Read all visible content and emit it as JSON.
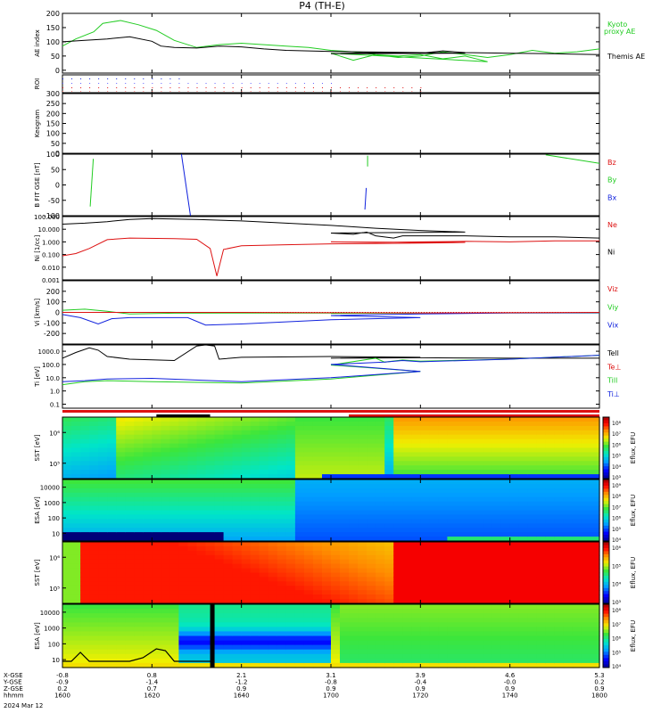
{
  "title": "P4 (TH-E)",
  "colors": {
    "black": "#000000",
    "green": "#22cc22",
    "red": "#dd1111",
    "blue": "#1122dd"
  },
  "chart_data": [
    {
      "id": "ae",
      "type": "line",
      "ylabel": "AE index",
      "ylim": [
        -10,
        200
      ],
      "yticks": [
        "200",
        "150",
        "100",
        "50",
        "0"
      ],
      "ytick_values": [
        200,
        150,
        100,
        50,
        0
      ],
      "legend": [
        {
          "text": "Kyoto",
          "color": "green"
        },
        {
          "text": "proxy AE",
          "color": "green"
        },
        {
          "text": "Themis AE",
          "color": "black"
        }
      ],
      "series": [
        {
          "name": "Kyoto proxy AE",
          "color": "green",
          "x": [
            1600,
            1603,
            1607,
            1609,
            1613,
            1617,
            1621,
            1625,
            1630,
            1635,
            1640,
            1645,
            1650,
            1655,
            1660,
            1665,
            1670,
            1675,
            1680,
            1685,
            1690,
            1695,
            1700,
            1705,
            1710,
            1715,
            1720,
            1725,
            1730,
            1735,
            1740,
            1745,
            1750,
            1755,
            1760
          ],
          "y": [
            85,
            110,
            135,
            165,
            175,
            160,
            140,
            105,
            80,
            90,
            95,
            90,
            85,
            80,
            70,
            65,
            55,
            50,
            55,
            40,
            50,
            30,
            60,
            35,
            55,
            45,
            50,
            65,
            55,
            45,
            55,
            70,
            60,
            65,
            75
          ]
        },
        {
          "name": "Themis AE",
          "color": "black",
          "x": [
            1600,
            1605,
            1610,
            1615,
            1620,
            1622,
            1625,
            1630,
            1635,
            1640,
            1645,
            1650,
            1660,
            1670,
            1680,
            1690,
            1700,
            1710,
            1720,
            1725,
            1730,
            1740,
            1750,
            1760
          ],
          "y": [
            100,
            105,
            110,
            118,
            102,
            85,
            80,
            78,
            85,
            82,
            75,
            70,
            66,
            64,
            62,
            60,
            58,
            62,
            60,
            68,
            62,
            60,
            58,
            55
          ]
        }
      ]
    },
    {
      "id": "roi",
      "type": "scatter",
      "ylabel": "ROI",
      "ylim": [
        0,
        4
      ]
    },
    {
      "id": "keogram",
      "type": "heatmap",
      "ylabel": "Keogram",
      "ylim": [
        0,
        300
      ],
      "yticks": [
        "300",
        "250",
        "200",
        "150",
        "100",
        "50",
        "0"
      ],
      "ytick_values": [
        300,
        250,
        200,
        150,
        100,
        50,
        0
      ]
    },
    {
      "id": "bfit",
      "type": "line",
      "ylabel": "B FIT GSE [nT]",
      "ylim": [
        -100,
        100
      ],
      "yticks": [
        "100",
        "50",
        "0",
        "-50",
        "-100"
      ],
      "ytick_values": [
        100,
        50,
        0,
        -50,
        -100
      ],
      "legend": [
        {
          "text": "Bz",
          "color": "red"
        },
        {
          "text": "By",
          "color": "green"
        },
        {
          "text": "Bx",
          "color": "blue"
        }
      ],
      "series": [
        {
          "name": "By",
          "color": "green",
          "x": [
            1606.2,
            1606.9
          ],
          "y": [
            -70,
            85
          ]
        },
        {
          "name": "Bx",
          "color": "blue",
          "x": [
            1626.6,
            1628.6
          ],
          "y": [
            100,
            -100
          ]
        },
        {
          "name": "By",
          "color": "green",
          "x": [
            1708.2,
            1708.2
          ],
          "y": [
            60,
            95
          ]
        },
        {
          "name": "Bx",
          "color": "blue",
          "x": [
            1707.6,
            1707.9
          ],
          "y": [
            -80,
            -10
          ]
        },
        {
          "name": "By",
          "color": "green",
          "x": [
            1748,
            1760
          ],
          "y": [
            98,
            70
          ]
        }
      ]
    },
    {
      "id": "density",
      "type": "line",
      "ylabel": "Ni [1/cc]",
      "scale": "log",
      "ylim": [
        0.001,
        100
      ],
      "yticks": [
        "100.000",
        "10.000",
        "1.000",
        "0.100",
        "0.010",
        "0.001"
      ],
      "ytick_values": [
        100,
        10,
        1,
        0.1,
        0.01,
        0.001
      ],
      "legend": [
        {
          "text": "Ne",
          "color": "red"
        },
        {
          "text": "Ni",
          "color": "black"
        }
      ],
      "series": [
        {
          "name": "Ni",
          "color": "black",
          "x": [
            1600,
            1605,
            1610,
            1615,
            1620,
            1630,
            1640,
            1650,
            1660,
            1670,
            1680,
            1690,
            1700,
            1705,
            1708,
            1710,
            1714,
            1716,
            1720,
            1730,
            1740,
            1750,
            1760
          ],
          "y": [
            25,
            30,
            40,
            60,
            70,
            60,
            45,
            30,
            20,
            12,
            8,
            6,
            5,
            4,
            6,
            3,
            2,
            3,
            3,
            3,
            2.5,
            2.5,
            2
          ]
        },
        {
          "name": "Ne",
          "color": "red",
          "x": [
            1600,
            1603,
            1606,
            1610,
            1615,
            1625,
            1630,
            1633,
            1634.5,
            1636,
            1640,
            1650,
            1660,
            1670,
            1680,
            1690,
            1700,
            1710,
            1720,
            1730,
            1740,
            1750,
            1760
          ],
          "y": [
            0.08,
            0.12,
            0.3,
            1.5,
            2,
            1.8,
            1.6,
            0.3,
            0.002,
            0.25,
            0.5,
            0.6,
            0.7,
            0.75,
            0.8,
            0.9,
            1,
            0.9,
            1,
            1.1,
            1,
            1.2,
            1.2
          ]
        }
      ]
    },
    {
      "id": "velocity",
      "type": "line",
      "ylabel": "Vi [km/s]",
      "ylim": [
        -300,
        300
      ],
      "yticks": [
        "200",
        "100",
        "0",
        "-100",
        "-200"
      ],
      "ytick_values": [
        200,
        100,
        0,
        -100,
        -200
      ],
      "legend": [
        {
          "text": "Viz",
          "color": "red"
        },
        {
          "text": "Viy",
          "color": "green"
        },
        {
          "text": "Vix",
          "color": "blue"
        }
      ],
      "series": [
        {
          "name": "Viy",
          "color": "green",
          "x": [
            1600,
            1605,
            1610,
            1615,
            1625,
            1640,
            1660,
            1680,
            1700,
            1720,
            1740,
            1760
          ],
          "y": [
            20,
            30,
            10,
            -15,
            -8,
            -6,
            -5,
            -6,
            -10,
            -6,
            -5,
            -5
          ]
        },
        {
          "name": "Vix",
          "color": "blue",
          "x": [
            1600,
            1604,
            1608,
            1611,
            1615,
            1628,
            1632,
            1640,
            1650,
            1660,
            1680,
            1700,
            1720,
            1740,
            1760
          ],
          "y": [
            -20,
            -50,
            -110,
            -60,
            -50,
            -50,
            -120,
            -110,
            -90,
            -70,
            -50,
            -30,
            -15,
            -5,
            -3
          ]
        },
        {
          "name": "Viz",
          "color": "red",
          "x": [
            1600,
            1640,
            1680,
            1720,
            1760
          ],
          "y": [
            0,
            0,
            -5,
            -5,
            0
          ]
        }
      ]
    },
    {
      "id": "temperature",
      "type": "line",
      "ylabel": "Ti [eV]",
      "scale": "log",
      "ylim": [
        0.05,
        3000
      ],
      "yticks": [
        "1000.0",
        "100.0",
        "10.0",
        "1.0",
        "0.1"
      ],
      "ytick_values": [
        1000,
        100,
        10,
        1,
        0.1
      ],
      "legend": [
        {
          "text": "Tell",
          "color": "black"
        },
        {
          "text": "Te⊥",
          "color": "red"
        },
        {
          "text": "Till",
          "color": "green"
        },
        {
          "text": "Ti⊥",
          "color": "blue"
        }
      ],
      "series": [
        {
          "name": "Tell",
          "color": "black",
          "x": [
            1600,
            1603,
            1606,
            1608,
            1610,
            1615,
            1625,
            1630,
            1632,
            1634,
            1635,
            1640,
            1660,
            1680,
            1700,
            1720,
            1740,
            1760
          ],
          "y": [
            300,
            800,
            1800,
            1200,
            400,
            250,
            200,
            2500,
            3000,
            2500,
            250,
            350,
            400,
            350,
            300,
            320,
            300,
            300
          ]
        },
        {
          "name": "Till",
          "color": "green",
          "x": [
            1600,
            1605,
            1610,
            1620,
            1640,
            1660,
            1680,
            1700,
            1710,
            1712,
            1716,
            1720,
            1740,
            1760
          ],
          "y": [
            3,
            5,
            6,
            5,
            4,
            8,
            30,
            90,
            300,
            150,
            220,
            180,
            250,
            500
          ]
        },
        {
          "name": "Ti⊥",
          "color": "blue",
          "x": [
            1600,
            1605,
            1610,
            1620,
            1640,
            1660,
            1680,
            1700,
            1712,
            1716,
            1720,
            1740,
            1760
          ],
          "y": [
            5,
            6,
            8,
            9,
            5,
            10,
            30,
            100,
            150,
            200,
            160,
            250,
            500
          ]
        }
      ]
    },
    {
      "id": "sst_e",
      "type": "heatmap",
      "ylabel": "SST [eV]",
      "scale": "log",
      "yticks": [
        "10⁶",
        "10⁵"
      ],
      "ytick_values": [
        1000000,
        100000
      ],
      "colorbar": {
        "label": "Eflux, EFU",
        "ticks": [
          "10⁸",
          "10⁷",
          "10⁶",
          "10⁵",
          "10⁴",
          "10³"
        ]
      }
    },
    {
      "id": "esa_e",
      "type": "heatmap",
      "ylabel": "ESA [eV]",
      "scale": "log",
      "yticks": [
        "10000",
        "1000",
        "100",
        "10"
      ],
      "ytick_values": [
        10000,
        1000,
        100,
        10
      ],
      "colorbar": {
        "label": "Eflux, EFU",
        "ticks": [
          "10⁹",
          "10⁸",
          "10⁷",
          "10⁶",
          "10⁵",
          "10⁴"
        ]
      }
    },
    {
      "id": "sst_i",
      "type": "heatmap",
      "ylabel": "SST [eV]",
      "scale": "log",
      "yticks": [
        "10⁶",
        "10⁵"
      ],
      "ytick_values": [
        1000000,
        100000
      ],
      "colorbar": {
        "label": "Eflux, EFU",
        "ticks": [
          "10⁶",
          "10⁵",
          "10⁴",
          "10³"
        ]
      }
    },
    {
      "id": "esa_i",
      "type": "heatmap",
      "ylabel": "ESA [eV]",
      "scale": "log",
      "yticks": [
        "10000",
        "1000",
        "100",
        "10"
      ],
      "ytick_values": [
        10000,
        1000,
        100,
        10
      ],
      "colorbar": {
        "label": "Eflux, EFU",
        "ticks": [
          "10⁸",
          "10⁷",
          "10⁶",
          "10⁵",
          "10⁴"
        ]
      }
    }
  ],
  "time_axis": {
    "xlim": [
      1600,
      1800
    ],
    "rows": [
      {
        "label": "X-GSE",
        "values": [
          "-0.8",
          "0.8",
          "2.1",
          "3.1",
          "3.9",
          "4.6",
          "5.3"
        ]
      },
      {
        "label": "Y-GSE",
        "values": [
          "-0.9",
          "-1.4",
          "-1.2",
          "-0.8",
          "-0.4",
          "-0.0",
          "0.2"
        ]
      },
      {
        "label": "Z-GSE",
        "values": [
          "0.2",
          "0.7",
          "0.9",
          "0.9",
          "0.9",
          "0.9",
          "0.9"
        ]
      },
      {
        "label": "hhmm",
        "values": [
          "1600",
          "1620",
          "1640",
          "1700",
          "1720",
          "1740",
          "1800"
        ]
      }
    ],
    "tick_minutes": [
      1600,
      1620,
      1640,
      1700,
      1720,
      1740,
      1800
    ],
    "date_label": "2024 Mar 12"
  }
}
